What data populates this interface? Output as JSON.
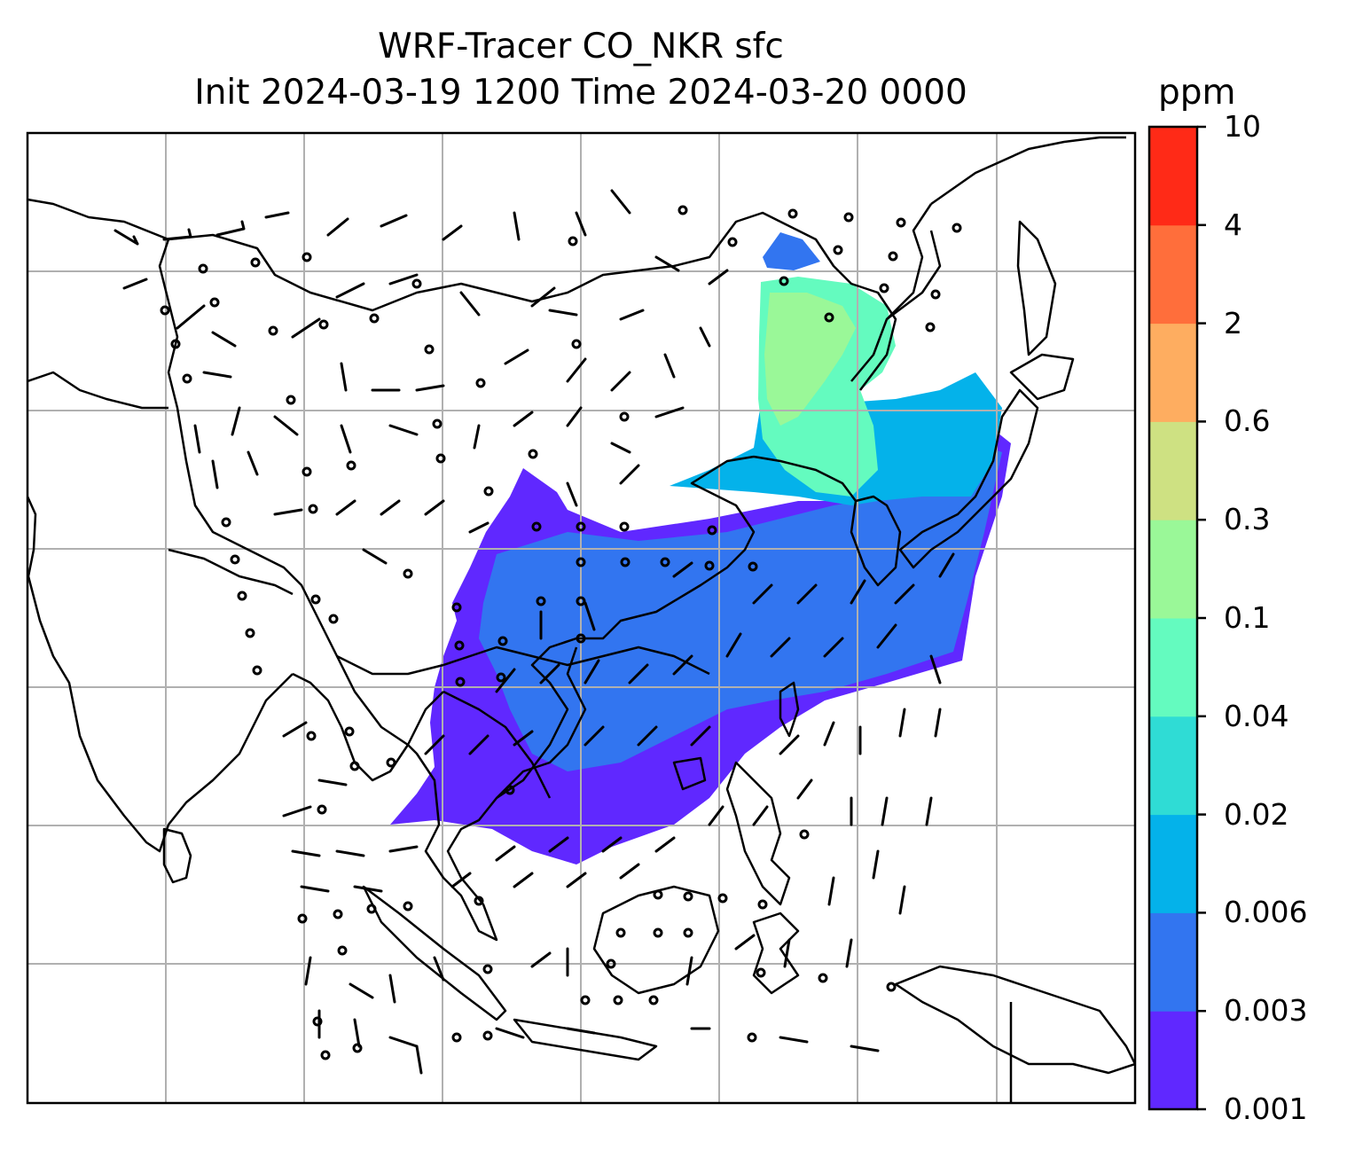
{
  "title": {
    "line1": "WRF-Tracer CO_NKR sfc",
    "line2": "Init 2024-03-19 1200 Time 2024-03-20 0000"
  },
  "colorbar": {
    "unit": "ppm",
    "levels": [
      "0.001",
      "0.003",
      "0.006",
      "0.02",
      "0.04",
      "0.1",
      "0.3",
      "0.6",
      "2",
      "4",
      "10"
    ],
    "colors": [
      "#6028ff",
      "#3275f0",
      "#04b2ea",
      "#2fdcd5",
      "#64fbbf",
      "#9af898",
      "#cee182",
      "#fead60",
      "#ff6e3b",
      "#ff2a17"
    ]
  },
  "map": {
    "gridlines": true,
    "coastline_color": "#000000",
    "gridline_color": "#b0b0b0",
    "wind_barbs": true
  }
}
